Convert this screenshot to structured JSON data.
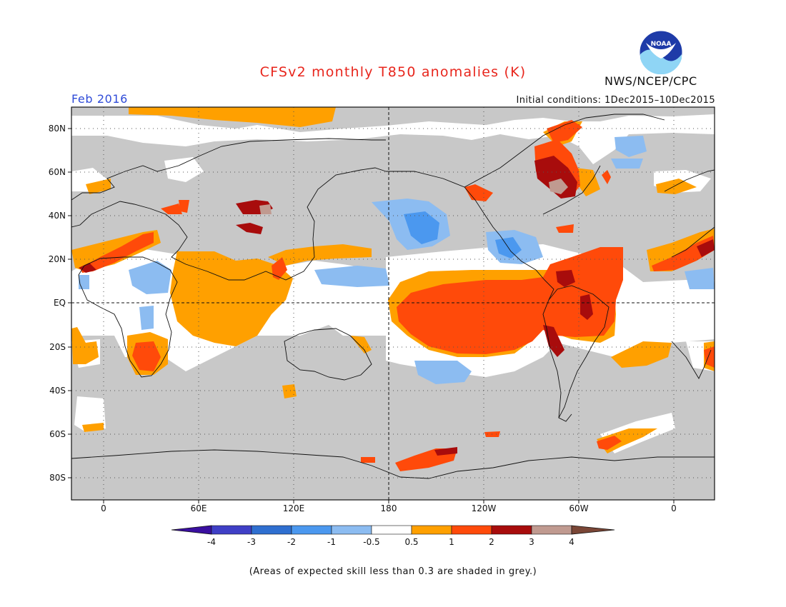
{
  "header": {
    "title": "CFSv2 monthly T850 anomalies (K)",
    "agency": "NWS/NCEP/CPC",
    "logo_text": "NOAA",
    "month": "Feb 2016",
    "initial_conditions": "Initial conditions: 1Dec2015–10Dec2015"
  },
  "map": {
    "lat_labels": [
      "80N",
      "60N",
      "40N",
      "20N",
      "EQ",
      "20S",
      "40S",
      "60S",
      "80S"
    ],
    "lon_labels": [
      "0",
      "60E",
      "120E",
      "180",
      "120W",
      "60W",
      "0"
    ]
  },
  "colorbar": {
    "labels": [
      "-4",
      "-3",
      "-2",
      "-1",
      "-0.5",
      "0.5",
      "1",
      "2",
      "3",
      "4"
    ],
    "colors": [
      "#3a0fa0",
      "#3f3fc6",
      "#2f6fd0",
      "#4b98ef",
      "#8cbcf1",
      "#ffffff",
      "#ffa000",
      "#ff4a0a",
      "#a80c0c",
      "#c09a90",
      "#7a4636"
    ]
  },
  "colors": {
    "grey_skill": "#c8c8c8",
    "title_red": "#e8261d",
    "month_blue": "#2f4bd8"
  },
  "footnote": "(Areas of expected skill less than 0.3 are shaded in grey.)"
}
